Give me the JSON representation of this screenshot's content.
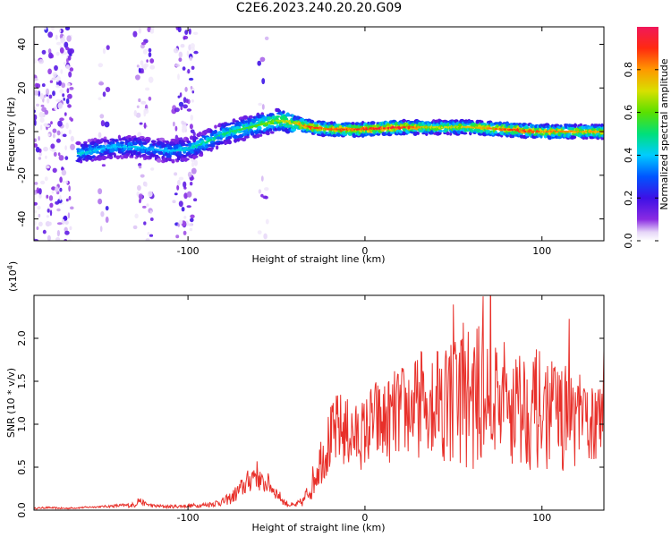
{
  "title": "C2E6.2023.240.20.20.G09",
  "chart_data": [
    {
      "type": "heatmap",
      "name": "spectrogram",
      "xlabel": "Height of straight line (km)",
      "ylabel": "Frequency (Hz)",
      "xlim": [
        -187,
        135
      ],
      "ylim": [
        -50,
        48
      ],
      "xticks": [
        -100,
        0,
        100
      ],
      "xtick_labels": [
        "-100",
        "0",
        "100"
      ],
      "yticks": [
        40,
        20,
        0,
        -20,
        -40
      ],
      "ytick_labels": [
        "40",
        "20",
        "0",
        "-20",
        "-40"
      ],
      "ridge": {
        "x": [
          -160,
          -150,
          -140,
          -130,
          -120,
          -110,
          -100,
          -90,
          -80,
          -70,
          -60,
          -50,
          -45,
          -40,
          -30,
          -20,
          -10,
          0,
          20,
          40,
          60,
          80,
          100,
          120,
          135
        ],
        "freq": [
          -10,
          -8,
          -7,
          -7,
          -8,
          -9,
          -8,
          -5,
          -1,
          1,
          3,
          5,
          5,
          4,
          2,
          1,
          1,
          1,
          2,
          2,
          2,
          1,
          0,
          0,
          0
        ],
        "amplitude": [
          0.45,
          0.4,
          0.4,
          0.42,
          0.38,
          0.4,
          0.45,
          0.5,
          0.5,
          0.55,
          0.6,
          0.65,
          0.7,
          0.75,
          0.9,
          0.85,
          0.9,
          0.92,
          0.95,
          0.7,
          0.75,
          0.9,
          0.85,
          0.8,
          0.8
        ]
      },
      "colorbar": {
        "label": "Normalized spectral amplitude",
        "ticks": [
          0.0,
          0.2,
          0.4,
          0.6,
          0.8
        ],
        "tick_labels": [
          "0.0",
          "0.2",
          "0.4",
          "0.6",
          "0.8"
        ],
        "range": [
          0,
          1
        ]
      }
    },
    {
      "type": "line",
      "name": "snr",
      "xlabel": "Height of straight line (km)",
      "ylabel": "SNR (10 * v/v)",
      "scale_label_base": "(x10",
      "scale_label_exp": "4",
      "scale_label_end": ")",
      "xlim": [
        -187,
        135
      ],
      "ylim": [
        0,
        2.5
      ],
      "xticks": [
        -100,
        0,
        100
      ],
      "xtick_labels": [
        "-100",
        "0",
        "100"
      ],
      "yticks": [
        0.0,
        0.5,
        1.0,
        1.5,
        2.0
      ],
      "ytick_labels": [
        "0.0",
        "0.5",
        "1.0",
        "1.5",
        "2.0"
      ],
      "series": [
        {
          "name": "SNR",
          "color": "#e8302a",
          "x": [
            -187,
            -180,
            -170,
            -160,
            -150,
            -140,
            -130,
            -128,
            -125,
            -120,
            -110,
            -100,
            -90,
            -80,
            -75,
            -70,
            -65,
            -62,
            -60,
            -58,
            -55,
            -50,
            -45,
            -40,
            -35,
            -30,
            -25,
            -20,
            -15,
            -10,
            -5,
            0,
            5,
            10,
            20,
            30,
            40,
            50,
            55,
            60,
            70,
            80,
            90,
            100,
            110,
            120,
            130,
            135
          ],
          "y": [
            0.02,
            0.03,
            0.02,
            0.03,
            0.04,
            0.05,
            0.06,
            0.12,
            0.08,
            0.05,
            0.04,
            0.05,
            0.06,
            0.1,
            0.15,
            0.25,
            0.35,
            0.45,
            0.38,
            0.3,
            0.32,
            0.2,
            0.08,
            0.05,
            0.1,
            0.3,
            0.6,
            0.8,
            0.95,
            0.9,
            0.85,
            0.9,
            1.05,
            1.0,
            1.15,
            1.2,
            1.35,
            1.25,
            1.4,
            1.3,
            1.35,
            1.25,
            1.2,
            1.15,
            1.1,
            1.05,
            1.0,
            1.05
          ],
          "noise": [
            0.01,
            0.01,
            0.01,
            0.01,
            0.01,
            0.02,
            0.03,
            0.05,
            0.03,
            0.02,
            0.02,
            0.02,
            0.03,
            0.05,
            0.08,
            0.12,
            0.15,
            0.18,
            0.16,
            0.12,
            0.12,
            0.08,
            0.04,
            0.03,
            0.06,
            0.18,
            0.3,
            0.4,
            0.45,
            0.42,
            0.4,
            0.42,
            0.5,
            0.5,
            0.55,
            0.6,
            0.7,
            0.8,
            0.9,
            0.85,
            0.8,
            0.75,
            0.72,
            0.7,
            0.65,
            0.55,
            0.45,
            0.4
          ]
        }
      ]
    }
  ]
}
